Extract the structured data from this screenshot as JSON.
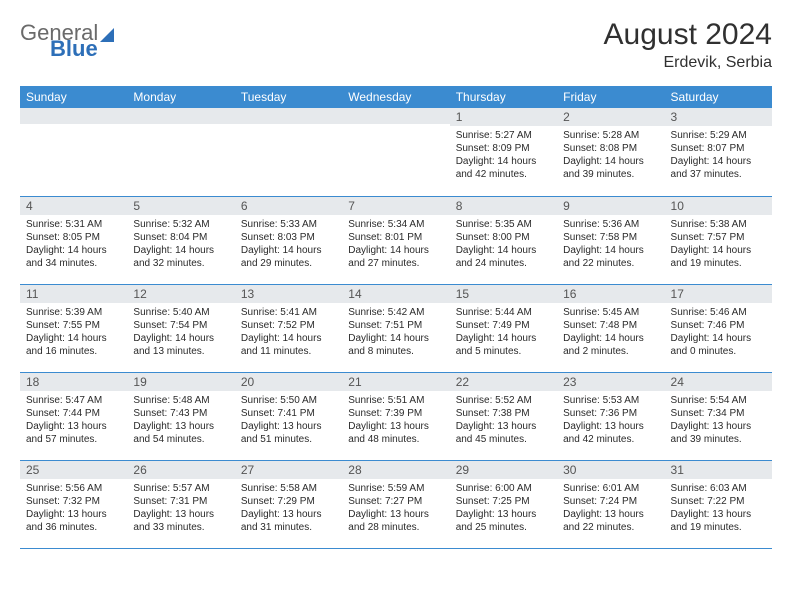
{
  "brand": {
    "word1": "General",
    "word2": "Blue",
    "brand_color": "#2d6fb8"
  },
  "title": "August 2024",
  "location": "Erdevik, Serbia",
  "colors": {
    "header_bg": "#3b8bd0",
    "header_fg": "#ffffff",
    "daybar_bg": "#e6e9ec",
    "row_divider": "#3b8bd0",
    "text": "#1a1a1a",
    "page_bg": "#ffffff"
  },
  "typography": {
    "title_fontsize": 30,
    "location_fontsize": 16,
    "weekday_fontsize": 12,
    "cell_fontsize": 10
  },
  "weekdays": [
    "Sunday",
    "Monday",
    "Tuesday",
    "Wednesday",
    "Thursday",
    "Friday",
    "Saturday"
  ],
  "layout": {
    "first_weekday_index": 4,
    "days_in_month": 31,
    "rows": 5,
    "cols": 7
  },
  "days": [
    {
      "n": 1,
      "sunrise": "5:27 AM",
      "sunset": "8:09 PM",
      "daylight": "14 hours and 42 minutes."
    },
    {
      "n": 2,
      "sunrise": "5:28 AM",
      "sunset": "8:08 PM",
      "daylight": "14 hours and 39 minutes."
    },
    {
      "n": 3,
      "sunrise": "5:29 AM",
      "sunset": "8:07 PM",
      "daylight": "14 hours and 37 minutes."
    },
    {
      "n": 4,
      "sunrise": "5:31 AM",
      "sunset": "8:05 PM",
      "daylight": "14 hours and 34 minutes."
    },
    {
      "n": 5,
      "sunrise": "5:32 AM",
      "sunset": "8:04 PM",
      "daylight": "14 hours and 32 minutes."
    },
    {
      "n": 6,
      "sunrise": "5:33 AM",
      "sunset": "8:03 PM",
      "daylight": "14 hours and 29 minutes."
    },
    {
      "n": 7,
      "sunrise": "5:34 AM",
      "sunset": "8:01 PM",
      "daylight": "14 hours and 27 minutes."
    },
    {
      "n": 8,
      "sunrise": "5:35 AM",
      "sunset": "8:00 PM",
      "daylight": "14 hours and 24 minutes."
    },
    {
      "n": 9,
      "sunrise": "5:36 AM",
      "sunset": "7:58 PM",
      "daylight": "14 hours and 22 minutes."
    },
    {
      "n": 10,
      "sunrise": "5:38 AM",
      "sunset": "7:57 PM",
      "daylight": "14 hours and 19 minutes."
    },
    {
      "n": 11,
      "sunrise": "5:39 AM",
      "sunset": "7:55 PM",
      "daylight": "14 hours and 16 minutes."
    },
    {
      "n": 12,
      "sunrise": "5:40 AM",
      "sunset": "7:54 PM",
      "daylight": "14 hours and 13 minutes."
    },
    {
      "n": 13,
      "sunrise": "5:41 AM",
      "sunset": "7:52 PM",
      "daylight": "14 hours and 11 minutes."
    },
    {
      "n": 14,
      "sunrise": "5:42 AM",
      "sunset": "7:51 PM",
      "daylight": "14 hours and 8 minutes."
    },
    {
      "n": 15,
      "sunrise": "5:44 AM",
      "sunset": "7:49 PM",
      "daylight": "14 hours and 5 minutes."
    },
    {
      "n": 16,
      "sunrise": "5:45 AM",
      "sunset": "7:48 PM",
      "daylight": "14 hours and 2 minutes."
    },
    {
      "n": 17,
      "sunrise": "5:46 AM",
      "sunset": "7:46 PM",
      "daylight": "14 hours and 0 minutes."
    },
    {
      "n": 18,
      "sunrise": "5:47 AM",
      "sunset": "7:44 PM",
      "daylight": "13 hours and 57 minutes."
    },
    {
      "n": 19,
      "sunrise": "5:48 AM",
      "sunset": "7:43 PM",
      "daylight": "13 hours and 54 minutes."
    },
    {
      "n": 20,
      "sunrise": "5:50 AM",
      "sunset": "7:41 PM",
      "daylight": "13 hours and 51 minutes."
    },
    {
      "n": 21,
      "sunrise": "5:51 AM",
      "sunset": "7:39 PM",
      "daylight": "13 hours and 48 minutes."
    },
    {
      "n": 22,
      "sunrise": "5:52 AM",
      "sunset": "7:38 PM",
      "daylight": "13 hours and 45 minutes."
    },
    {
      "n": 23,
      "sunrise": "5:53 AM",
      "sunset": "7:36 PM",
      "daylight": "13 hours and 42 minutes."
    },
    {
      "n": 24,
      "sunrise": "5:54 AM",
      "sunset": "7:34 PM",
      "daylight": "13 hours and 39 minutes."
    },
    {
      "n": 25,
      "sunrise": "5:56 AM",
      "sunset": "7:32 PM",
      "daylight": "13 hours and 36 minutes."
    },
    {
      "n": 26,
      "sunrise": "5:57 AM",
      "sunset": "7:31 PM",
      "daylight": "13 hours and 33 minutes."
    },
    {
      "n": 27,
      "sunrise": "5:58 AM",
      "sunset": "7:29 PM",
      "daylight": "13 hours and 31 minutes."
    },
    {
      "n": 28,
      "sunrise": "5:59 AM",
      "sunset": "7:27 PM",
      "daylight": "13 hours and 28 minutes."
    },
    {
      "n": 29,
      "sunrise": "6:00 AM",
      "sunset": "7:25 PM",
      "daylight": "13 hours and 25 minutes."
    },
    {
      "n": 30,
      "sunrise": "6:01 AM",
      "sunset": "7:24 PM",
      "daylight": "13 hours and 22 minutes."
    },
    {
      "n": 31,
      "sunrise": "6:03 AM",
      "sunset": "7:22 PM",
      "daylight": "13 hours and 19 minutes."
    }
  ],
  "labels": {
    "sunrise": "Sunrise:",
    "sunset": "Sunset:",
    "daylight": "Daylight:"
  }
}
